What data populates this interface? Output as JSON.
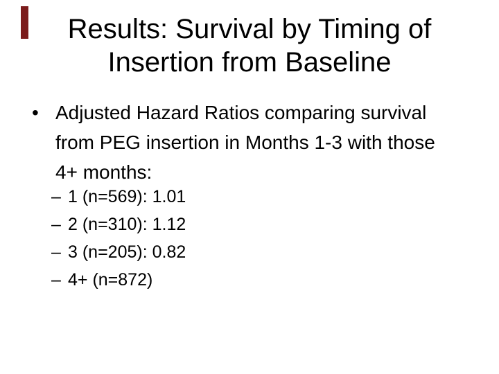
{
  "slide": {
    "accent_color": "#7B1B1B",
    "background_color": "#FFFFFF",
    "text_color": "#000000",
    "title": {
      "lines": [
        "Results: Survival by Timing of",
        "Insertion from Baseline"
      ]
    },
    "bullet": {
      "marker": "•",
      "text": "Adjusted Hazard Ratios comparing survival from PEG insertion in Months 1-3 with those 4+ months:",
      "sub_marker": "–",
      "sub_items": [
        "1 (n=569): 1.01",
        "2 (n=310): 1.12",
        "3 (n=205): 0.82",
        "4+ (n=872)"
      ]
    }
  }
}
